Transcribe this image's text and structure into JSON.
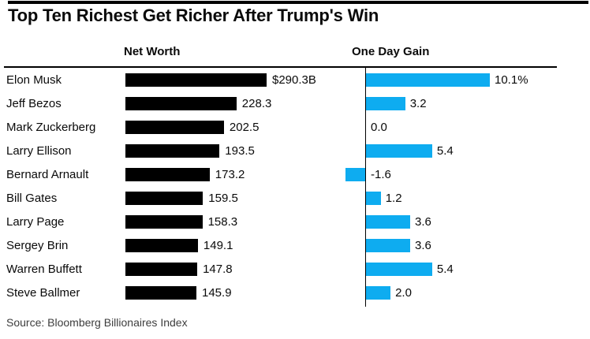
{
  "title": "Top Ten Richest Get Richer After Trump's Win",
  "columns": {
    "net_worth": "Net Worth",
    "one_day_gain": "One Day Gain"
  },
  "source": "Source: Bloomberg Billionaires Index",
  "colors": {
    "net_worth_bar": "#000000",
    "gain_bar": "#0eacf0",
    "text": "#0a0a0a",
    "source_text": "#3d3d3d"
  },
  "chart_data": {
    "type": "bar",
    "orientation": "horizontal",
    "grid": false,
    "legend_position": "column-headers",
    "categories": [
      "Elon Musk",
      "Jeff Bezos",
      "Mark Zuckerberg",
      "Larry Ellison",
      "Bernard Arnault",
      "Bill Gates",
      "Larry Page",
      "Sergey Brin",
      "Warren Buffett",
      "Steve Ballmer"
    ],
    "series": [
      {
        "name": "Net Worth",
        "unit": "$B",
        "xlim": [
          0,
          290.3
        ],
        "values": [
          290.3,
          228.3,
          202.5,
          193.5,
          173.2,
          159.5,
          158.3,
          149.1,
          147.8,
          145.9
        ],
        "labels": [
          "$290.3B",
          "228.3",
          "202.5",
          "193.5",
          "173.2",
          "159.5",
          "158.3",
          "149.1",
          "147.8",
          "145.9"
        ]
      },
      {
        "name": "One Day Gain",
        "unit": "%",
        "xlim": [
          -1.6,
          10.1
        ],
        "values": [
          10.1,
          3.2,
          0.0,
          5.4,
          -1.6,
          1.2,
          3.6,
          3.6,
          5.4,
          2.0
        ],
        "labels": [
          "10.1%",
          "3.2",
          "0.0",
          "5.4",
          "-1.6",
          "1.2",
          "3.6",
          "3.6",
          "5.4",
          "2.0"
        ]
      }
    ]
  }
}
